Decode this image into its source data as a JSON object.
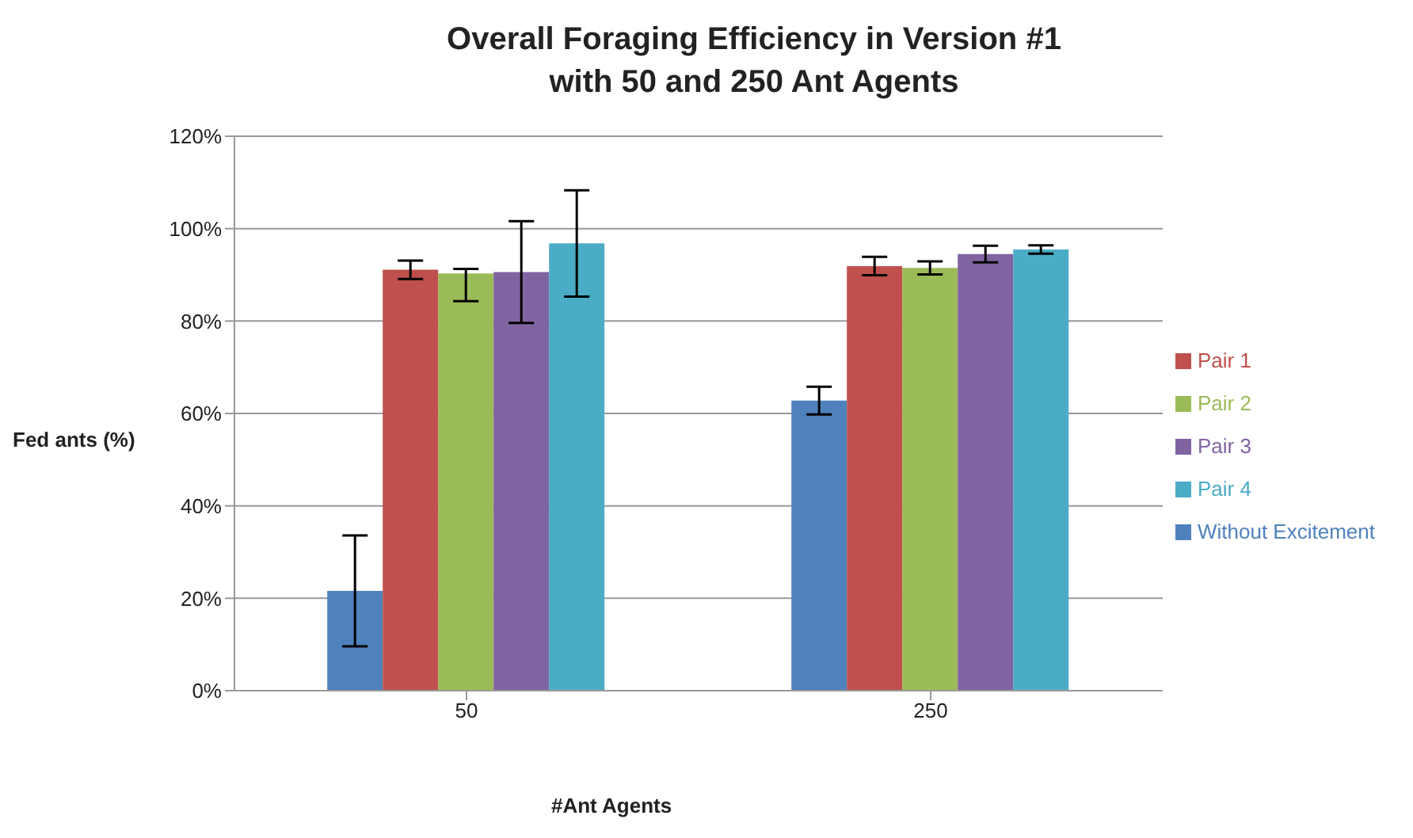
{
  "chart_data": {
    "type": "bar",
    "title": "Overall Foraging Efficiency in Version #1\nwith 50 and 250 Ant Agents",
    "xlabel": "#Ant Agents",
    "ylabel": "Fed ants (%)",
    "categories": [
      "50",
      "250"
    ],
    "series": [
      {
        "name": "Without Excitement",
        "color": "#4f81bd",
        "values": [
          21.6,
          62.8
        ],
        "errors": [
          12,
          3
        ]
      },
      {
        "name": "Pair 1",
        "color": "#c0504d",
        "values": [
          91.1,
          91.9
        ],
        "errors": [
          2,
          2
        ]
      },
      {
        "name": "Pair 2",
        "color": "#9bbb59",
        "values": [
          90.3,
          91.5
        ],
        "errors": [
          [
            84.3,
            91.3
          ],
          1.4
        ]
      },
      {
        "name": "Pair 3",
        "color": "#8064a2",
        "values": [
          90.6,
          94.5
        ],
        "errors": [
          11,
          1.8
        ]
      },
      {
        "name": "Pair 4",
        "color": "#4bacc6",
        "values": [
          96.8,
          95.5
        ],
        "errors": [
          11.5,
          0.9
        ]
      }
    ],
    "ylim": [
      0,
      120
    ],
    "yticks": [
      {
        "value": 0,
        "label": "0%"
      },
      {
        "value": 20,
        "label": "20%"
      },
      {
        "value": 40,
        "label": "40%"
      },
      {
        "value": 60,
        "label": "60%"
      },
      {
        "value": 80,
        "label": "80%"
      },
      {
        "value": 100,
        "label": "100%"
      },
      {
        "value": 120,
        "label": "120%"
      }
    ],
    "grid": "y",
    "legend": "right"
  }
}
